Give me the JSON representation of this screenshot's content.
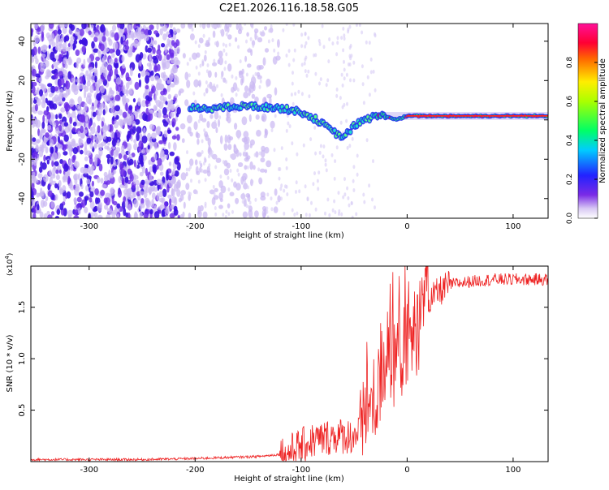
{
  "title": "C2E1.2026.116.18.58.G05",
  "colors": {
    "snr_line": "#ee2222",
    "background_scatter": "#7a4ff0",
    "frame": "#000000"
  },
  "chart_data": [
    {
      "type": "heatmap",
      "xlabel": "Height of straight line (km)",
      "ylabel": "Frequency (Hz)",
      "xlim": [
        -355,
        133
      ],
      "ylim": [
        -50,
        49
      ],
      "xticks": [
        -300,
        -200,
        -100,
        0,
        100
      ],
      "yticks": [
        -40,
        -20,
        0,
        20,
        40
      ],
      "colorbar": {
        "label": "Normalized spectral amplitude",
        "range": [
          0,
          1
        ],
        "ticks": [
          "0.0",
          "0.2",
          "0.4",
          "0.6",
          "0.8"
        ]
      },
      "ridge": [
        {
          "x": -205,
          "y": 6
        },
        {
          "x": -180,
          "y": 6
        },
        {
          "x": -150,
          "y": 7
        },
        {
          "x": -120,
          "y": 6
        },
        {
          "x": -100,
          "y": 4
        },
        {
          "x": -85,
          "y": 0
        },
        {
          "x": -70,
          "y": -6
        },
        {
          "x": -60,
          "y": -9
        },
        {
          "x": -50,
          "y": -3
        },
        {
          "x": -40,
          "y": 0
        },
        {
          "x": -30,
          "y": 2
        },
        {
          "x": -20,
          "y": 2
        },
        {
          "x": -10,
          "y": 0
        },
        {
          "x": 0,
          "y": 2
        },
        {
          "x": 30,
          "y": 2
        },
        {
          "x": 60,
          "y": 2
        },
        {
          "x": 100,
          "y": 2
        },
        {
          "x": 133,
          "y": 2
        }
      ]
    },
    {
      "type": "line",
      "xlabel": "Height of straight line (km)",
      "ylabel": "SNR (10 * v/v)",
      "multiplier": "(x10",
      "multiplier_exp": "4",
      "multiplier_close": ")",
      "xlim": [
        -355,
        133
      ],
      "ylim": [
        0,
        1.9
      ],
      "xticks": [
        -300,
        -200,
        -100,
        0,
        100
      ],
      "yticks": [
        0.5,
        1.0,
        1.5
      ],
      "ytick_labels": [
        "0.5",
        "1.0",
        "1.5"
      ],
      "series": [
        {
          "x": [
            -355,
            -300,
            -250,
            -200,
            -170,
            -140,
            -120,
            -110,
            -100,
            -90,
            -80,
            -70,
            -60,
            -50,
            -45,
            -40,
            -35,
            -30,
            -25,
            -20,
            -15,
            -10,
            -5,
            0,
            5,
            10,
            15,
            20,
            30,
            40,
            60,
            80,
            100,
            133
          ],
          "values": [
            0.02,
            0.02,
            0.02,
            0.03,
            0.04,
            0.05,
            0.07,
            0.1,
            0.15,
            0.2,
            0.22,
            0.25,
            0.25,
            0.25,
            0.3,
            0.45,
            0.55,
            0.6,
            0.75,
            0.85,
            0.95,
            1.0,
            1.05,
            1.1,
            1.2,
            1.3,
            1.45,
            1.55,
            1.65,
            1.72,
            1.75,
            1.77,
            1.77,
            1.77
          ]
        }
      ]
    }
  ]
}
